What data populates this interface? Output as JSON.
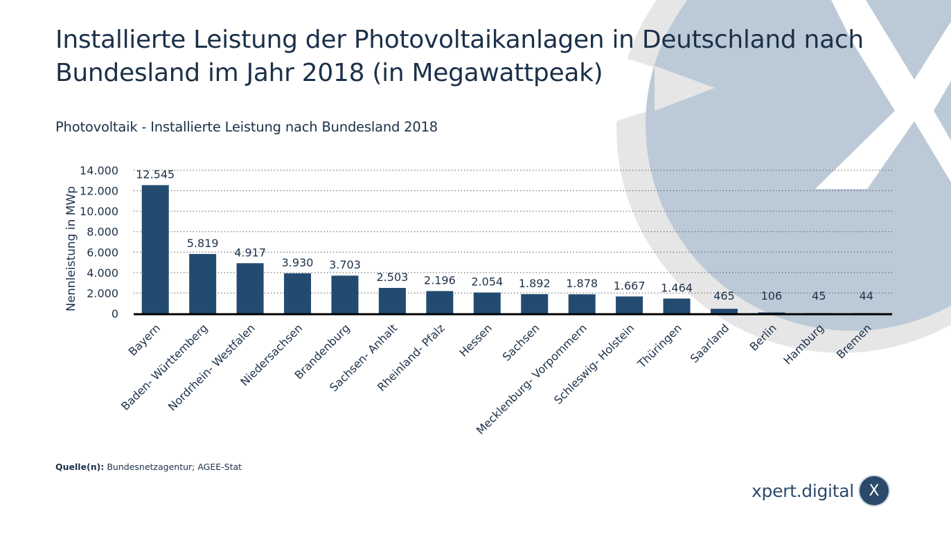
{
  "page": {
    "title": "Installierte Leistung der Photovoltaikanlagen in Deutschland nach Bundesland im Jahr 2018 (in Megawattpeak)",
    "source_label": "Quelle(n):",
    "source_text": "Bundesnetzagentur; AGEE-Stat",
    "brand_text": "xpert.digital",
    "brand_logo_glyph": "X",
    "background_logo_glyph": "X"
  },
  "colors": {
    "bar": "#234b70",
    "text": "#1b3049",
    "grid": "#555555",
    "axis": "#000000",
    "deco_circle": "#bccad8",
    "deco_ring": "#e6e6e6"
  },
  "chart_data": {
    "type": "bar",
    "title": "Photovoltaik - Installierte Leistung nach Bundesland 2018",
    "xlabel": "",
    "ylabel": "Nennleistung in MWp",
    "ylim": [
      0,
      14000
    ],
    "yticks": [
      0,
      2000,
      4000,
      6000,
      8000,
      10000,
      12000,
      14000
    ],
    "ytick_labels": [
      "0",
      "2.000",
      "4.000",
      "6.000",
      "8.000",
      "10.000",
      "12.000",
      "14.000"
    ],
    "grid": true,
    "grid_style": "dotted",
    "legend": "none",
    "categories": [
      "Bayern",
      "Baden- Württemberg",
      "Nordrhein- Westfalen",
      "Niedersachsen",
      "Brandenburg",
      "Sachsen- Anhalt",
      "Rheinland- Pfalz",
      "Hessen",
      "Sachsen",
      "Mecklenburg- Vorpommern",
      "Schleswig- Holstein",
      "Thüringen",
      "Saarland",
      "Berlin",
      "Hamburg",
      "Bremen"
    ],
    "values": [
      12545,
      5819,
      4917,
      3930,
      3703,
      2503,
      2196,
      2054,
      1892,
      1878,
      1667,
      1464,
      465,
      106,
      45,
      44
    ],
    "value_labels": [
      "12.545",
      "5.819",
      "4.917",
      "3.930",
      "3.703",
      "2.503",
      "2.196",
      "2.054",
      "1.892",
      "1.878",
      "1.667",
      "1.464",
      "465",
      "106",
      "45",
      "44"
    ]
  }
}
